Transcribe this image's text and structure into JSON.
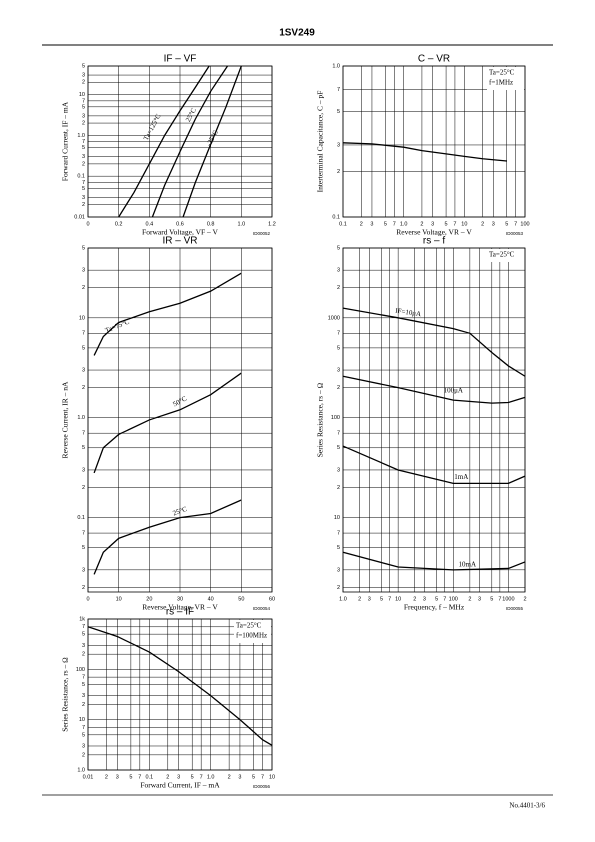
{
  "header": {
    "title": "1SV249"
  },
  "footer": {
    "text": "No.4401-3/6"
  },
  "chart_data": [
    {
      "type": "line",
      "title": "IF – VF",
      "xlabel": "Forward Voltage, VF – V",
      "ylabel": "Forward Current, IF – mA",
      "code": "ID00052",
      "xscale": "linear",
      "yscale": "log",
      "xlim": [
        0,
        1.2
      ],
      "ylim": [
        0.01,
        50
      ],
      "xticks": [
        0,
        0.2,
        0.4,
        0.6,
        0.8,
        {
          "value": 1,
          "label": "1.0"
        },
        1.2
      ],
      "yticks": [
        0.01,
        {
          "value": 0.02,
          "label": "2"
        },
        {
          "value": 0.03,
          "label": "3"
        },
        {
          "value": 0.05,
          "label": "5"
        },
        {
          "value": 0.07,
          "label": "7"
        },
        0.1,
        {
          "value": 0.2,
          "label": "2"
        },
        {
          "value": 0.3,
          "label": "3"
        },
        {
          "value": 0.5,
          "label": "5"
        },
        {
          "value": 0.7,
          "label": "7"
        },
        {
          "value": 1,
          "label": "1.0"
        },
        2,
        3,
        5,
        7,
        10,
        {
          "value": 20,
          "label": "2"
        },
        {
          "value": 30,
          "label": "3"
        },
        {
          "value": 50,
          "label": "5"
        }
      ],
      "series": [
        {
          "name": "Ta=125°C",
          "color": "#000000",
          "x": [
            0.2,
            0.3,
            0.4,
            0.5,
            0.6,
            0.7,
            0.79
          ],
          "values": [
            0.01,
            0.04,
            0.2,
            1,
            4,
            15,
            50
          ]
        },
        {
          "name": "25°C",
          "color": "#000000",
          "x": [
            0.42,
            0.5,
            0.6,
            0.7,
            0.8,
            0.91
          ],
          "values": [
            0.01,
            0.06,
            0.4,
            2.5,
            12,
            50
          ]
        },
        {
          "name": "-25°C",
          "color": "#000000",
          "x": [
            0.62,
            0.7,
            0.8,
            0.9,
            1.0
          ],
          "values": [
            0.01,
            0.07,
            0.6,
            5,
            50
          ]
        }
      ]
    },
    {
      "type": "line",
      "title": "C – VR",
      "xlabel": "Reverse Voltage, VR – V",
      "ylabel": "Interterminal Capacitance, C – pF",
      "code": "ID00053",
      "xscale": "log",
      "yscale": "log",
      "xlim": [
        0.1,
        100
      ],
      "ylim": [
        0.1,
        1
      ],
      "xticks": [
        0.1,
        {
          "value": 0.2,
          "label": "2"
        },
        {
          "value": 0.3,
          "label": "3"
        },
        {
          "value": 0.5,
          "label": "5"
        },
        {
          "value": 0.7,
          "label": "7"
        },
        {
          "value": 1,
          "label": "1.0"
        },
        2,
        3,
        5,
        7,
        10,
        {
          "value": 20,
          "label": "2"
        },
        {
          "value": 30,
          "label": "3"
        },
        {
          "value": 50,
          "label": "5"
        },
        {
          "value": 70,
          "label": "7"
        },
        100
      ],
      "yticks": [
        0.1,
        {
          "value": 0.2,
          "label": "2"
        },
        {
          "value": 0.3,
          "label": "3"
        },
        {
          "value": 0.5,
          "label": "5"
        },
        {
          "value": 0.7,
          "label": "7"
        },
        {
          "value": 1,
          "label": "1.0"
        }
      ],
      "annotations": [
        "Ta=25°C",
        "f=1MHz"
      ],
      "series": [
        {
          "name": "C",
          "color": "#000000",
          "x": [
            0.1,
            0.3,
            1,
            2,
            5,
            10,
            20,
            50
          ],
          "values": [
            0.31,
            0.305,
            0.29,
            0.275,
            0.262,
            0.252,
            0.243,
            0.235
          ]
        }
      ]
    },
    {
      "type": "line",
      "title": "IR – VR",
      "xlabel": "Reverse Voltage, VR – V",
      "ylabel": "Reverse Current, IR – nA",
      "code": "ID00054",
      "xscale": "linear",
      "yscale": "log",
      "xlim": [
        0,
        60
      ],
      "ylim": [
        0.018,
        50
      ],
      "xticks": [
        0,
        10,
        20,
        30,
        40,
        50,
        60
      ],
      "yticks": [
        {
          "value": 0.02,
          "label": "2"
        },
        {
          "value": 0.03,
          "label": "3"
        },
        {
          "value": 0.05,
          "label": "5"
        },
        {
          "value": 0.07,
          "label": "7"
        },
        0.1,
        {
          "value": 0.2,
          "label": "2"
        },
        {
          "value": 0.3,
          "label": "3"
        },
        {
          "value": 0.5,
          "label": "5"
        },
        {
          "value": 0.7,
          "label": "7"
        },
        {
          "value": 1,
          "label": "1.0"
        },
        2,
        3,
        5,
        7,
        10,
        {
          "value": 20,
          "label": "2"
        },
        {
          "value": 30,
          "label": "3"
        },
        {
          "value": 50,
          "label": "5"
        }
      ],
      "series": [
        {
          "name": "Ta=75°C",
          "color": "#000000",
          "x": [
            2,
            5,
            10,
            20,
            30,
            40,
            50
          ],
          "values": [
            4.2,
            6.5,
            9,
            11.5,
            14,
            18.5,
            28
          ]
        },
        {
          "name": "50°C",
          "color": "#000000",
          "x": [
            2,
            5,
            10,
            20,
            30,
            40,
            50
          ],
          "values": [
            0.28,
            0.5,
            0.68,
            0.95,
            1.2,
            1.7,
            2.8
          ]
        },
        {
          "name": "25°C",
          "color": "#000000",
          "x": [
            2,
            5,
            10,
            20,
            30,
            40,
            50
          ],
          "values": [
            0.027,
            0.045,
            0.062,
            0.08,
            0.1,
            0.11,
            0.15
          ]
        }
      ]
    },
    {
      "type": "line",
      "title": "rs – f",
      "xlabel": "Frequency, f – MHz",
      "ylabel": "Series Resistance, rs – Ω",
      "code": "ID00055",
      "xscale": "log",
      "yscale": "log",
      "xlim": [
        1,
        2000
      ],
      "ylim": [
        1.8,
        5000
      ],
      "xticks": [
        {
          "value": 1,
          "label": "1.0"
        },
        2,
        3,
        5,
        7,
        10,
        {
          "value": 20,
          "label": "2"
        },
        {
          "value": 30,
          "label": "3"
        },
        {
          "value": 50,
          "label": "5"
        },
        {
          "value": 70,
          "label": "7"
        },
        100,
        {
          "value": 200,
          "label": "2"
        },
        {
          "value": 300,
          "label": "3"
        },
        {
          "value": 500,
          "label": "5"
        },
        {
          "value": 700,
          "label": "7"
        },
        1000,
        {
          "value": 2000,
          "label": "2"
        }
      ],
      "yticks": [
        2,
        3,
        5,
        7,
        10,
        {
          "value": 20,
          "label": "2"
        },
        {
          "value": 30,
          "label": "3"
        },
        {
          "value": 50,
          "label": "5"
        },
        {
          "value": 70,
          "label": "7"
        },
        100,
        {
          "value": 200,
          "label": "2"
        },
        {
          "value": 300,
          "label": "3"
        },
        {
          "value": 500,
          "label": "5"
        },
        {
          "value": 700,
          "label": "7"
        },
        1000,
        {
          "value": 2000,
          "label": "2"
        },
        {
          "value": 3000,
          "label": "3"
        },
        {
          "value": 5000,
          "label": "5"
        }
      ],
      "annotations": [
        "Ta=25°C"
      ],
      "series": [
        {
          "name": "IF=10μA",
          "color": "#000000",
          "x": [
            1,
            10,
            100,
            200,
            500,
            1000,
            2000
          ],
          "values": [
            1250,
            1000,
            780,
            700,
            450,
            330,
            260
          ]
        },
        {
          "name": "100μA",
          "color": "#000000",
          "x": [
            1,
            10,
            100,
            500,
            1000,
            2000
          ],
          "values": [
            260,
            200,
            150,
            140,
            142,
            160
          ]
        },
        {
          "name": "1mA",
          "color": "#000000",
          "x": [
            1,
            10,
            100,
            1000,
            2000
          ],
          "values": [
            52,
            30,
            22,
            22,
            26
          ]
        },
        {
          "name": "10mA",
          "color": "#000000",
          "x": [
            1,
            10,
            100,
            1000,
            2000
          ],
          "values": [
            4.5,
            3.2,
            3,
            3.1,
            3.6
          ]
        }
      ]
    },
    {
      "type": "line",
      "title": "rs – IF",
      "xlabel": "Forward Current, IF – mA",
      "ylabel": "Series Resistance, rs – Ω",
      "code": "ID00056",
      "xscale": "log",
      "yscale": "log",
      "xlim": [
        0.01,
        10
      ],
      "ylim": [
        1,
        1000
      ],
      "xticks": [
        0.01,
        {
          "value": 0.02,
          "label": "2"
        },
        {
          "value": 0.03,
          "label": "3"
        },
        {
          "value": 0.05,
          "label": "5"
        },
        {
          "value": 0.07,
          "label": "7"
        },
        0.1,
        {
          "value": 0.2,
          "label": "2"
        },
        {
          "value": 0.3,
          "label": "3"
        },
        {
          "value": 0.5,
          "label": "5"
        },
        {
          "value": 0.7,
          "label": "7"
        },
        {
          "value": 1,
          "label": "1.0"
        },
        2,
        3,
        5,
        7,
        10
      ],
      "yticks": [
        {
          "value": 1,
          "label": "1.0"
        },
        2,
        3,
        5,
        7,
        10,
        {
          "value": 20,
          "label": "2"
        },
        {
          "value": 30,
          "label": "3"
        },
        {
          "value": 50,
          "label": "5"
        },
        {
          "value": 70,
          "label": "7"
        },
        100,
        {
          "value": 200,
          "label": "2"
        },
        {
          "value": 300,
          "label": "3"
        },
        {
          "value": 500,
          "label": "5"
        },
        {
          "value": 700,
          "label": "7"
        },
        {
          "value": 1000,
          "label": "1k"
        }
      ],
      "annotations": [
        "Ta=25°C",
        "f=100MHz"
      ],
      "series": [
        {
          "name": "rs",
          "color": "#000000",
          "x": [
            0.01,
            0.03,
            0.1,
            0.3,
            1,
            3,
            7,
            10
          ],
          "values": [
            700,
            450,
            220,
            90,
            30,
            10,
            4,
            3.1
          ]
        }
      ]
    }
  ]
}
